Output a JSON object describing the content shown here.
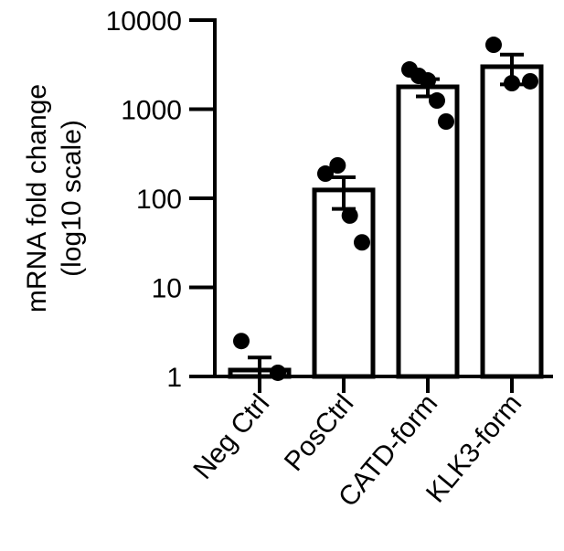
{
  "chart_data": {
    "type": "bar",
    "y_label": [
      "mRNA  fold change",
      "(log10 scale)"
    ],
    "categories": [
      "Neg Ctrl",
      "PosCtrl",
      "CATD-form",
      "KLK3-form"
    ],
    "values": [
      1.18,
      124,
      1783,
      3000
    ],
    "errors": [
      0.45,
      48,
      390,
      1100
    ],
    "points": [
      [
        2.5,
        1.1
      ],
      [
        189,
        234,
        64,
        32
      ],
      [
        2793,
        2368,
        2104,
        1251,
        727
      ],
      [
        5284,
        1960,
        2056
      ]
    ],
    "color": "#ffffff",
    "edge_color": "#000000",
    "point_color": "#000000",
    "log_scale": true,
    "ylim": [
      1,
      10000
    ],
    "yticks": [
      1,
      10,
      100,
      1000,
      10000
    ],
    "grid": false
  }
}
